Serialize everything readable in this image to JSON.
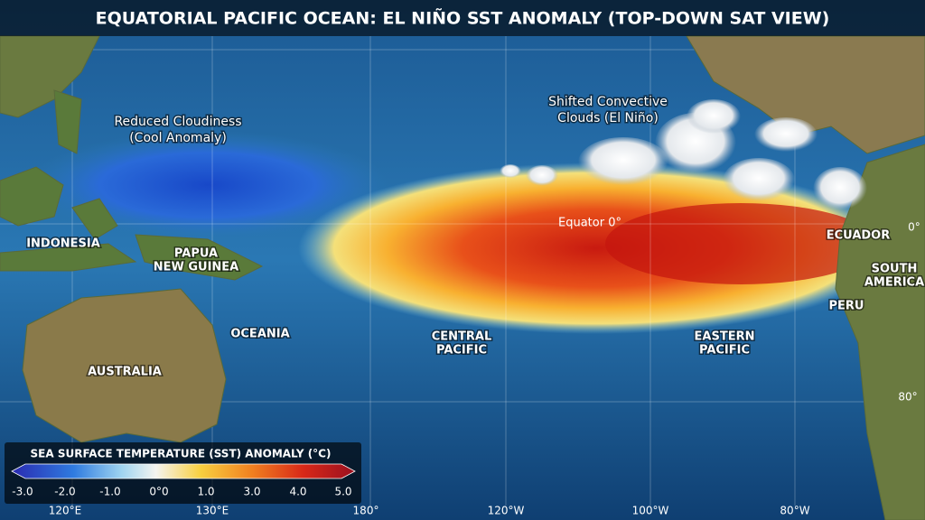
{
  "title": "EQUATORIAL PACIFIC OCEAN: EL NIÑO SST ANOMALY (TOP-DOWN SAT VIEW)",
  "labels": [
    {
      "lines": [
        "Reduced Cloudiness",
        "(Cool Anomaly)"
      ]
    },
    {
      "lines": [
        "Shifted Convective",
        "Clouds (El Niño)"
      ]
    },
    {
      "lines": [
        "INDONESIA"
      ]
    },
    {
      "lines": [
        "PAPUA",
        "NEW GUINEA"
      ]
    },
    {
      "lines": [
        "OCEANIA"
      ]
    },
    {
      "lines": [
        "AUSTRALIA"
      ]
    },
    {
      "lines": [
        "CENTRAL",
        "PACIFIC"
      ]
    },
    {
      "lines": [
        "EASTERN",
        "PACIFIC"
      ]
    },
    {
      "lines": [
        "ECUADOR"
      ]
    },
    {
      "lines": [
        "SOUTH",
        "AMERICA"
      ]
    },
    {
      "lines": [
        "PERU"
      ]
    }
  ],
  "equator_label": "Equator 0°",
  "edge_labels": [
    "0°",
    "80°"
  ],
  "legend": {
    "title": "SEA SURFACE TEMPERATURE (SST) ANOMALY (°C)",
    "ticks": [
      "-3.0",
      "-2.0",
      "-1.0",
      "0°0",
      "1.0",
      "3.0",
      "4.0",
      "5.0"
    ]
  },
  "longitudes": [
    "120°E",
    "130°E",
    "180°",
    "120°W",
    "100°W",
    "80°W"
  ]
}
